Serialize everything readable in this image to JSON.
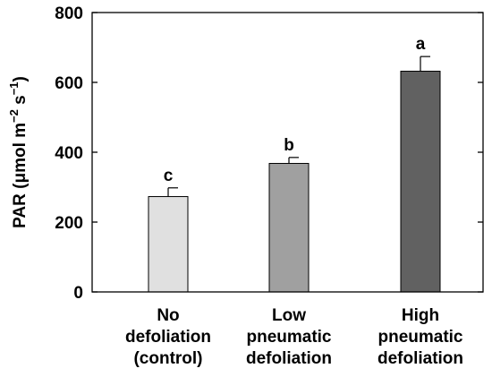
{
  "chart_data": {
    "type": "bar",
    "ylabel_main": "PAR (μmol m",
    "ylabel_exp1": "−2",
    "ylabel_mid": " s",
    "ylabel_exp2": "−1",
    "ylabel_end": ")",
    "ylim": [
      0,
      800
    ],
    "yticks": [
      "0",
      "200",
      "400",
      "600",
      "800"
    ],
    "categories": [
      [
        "No",
        "defoliation",
        "(control)"
      ],
      [
        "Low",
        "pneumatic",
        "defoliation"
      ],
      [
        "High",
        "pneumatic",
        "defoliation"
      ]
    ],
    "values": [
      273,
      368,
      632
    ],
    "errors": [
      25,
      17,
      42
    ],
    "letters": [
      "c",
      "b",
      "a"
    ],
    "colors": [
      "#e0e0e0",
      "#a0a0a0",
      "#616161"
    ],
    "grid": false
  }
}
